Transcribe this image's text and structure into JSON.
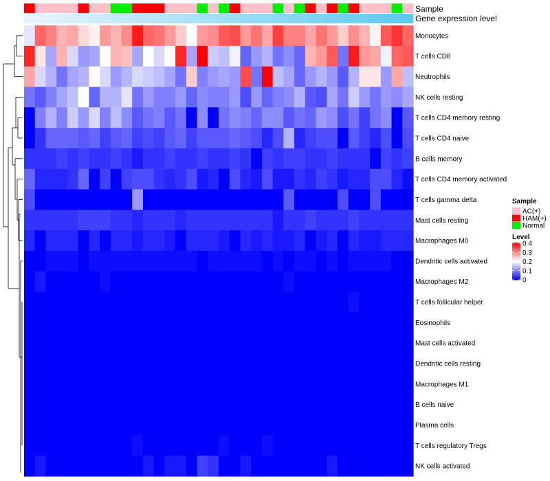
{
  "chart_data": {
    "type": "heatmap",
    "title": "",
    "annotation_rows": [
      "Sample",
      "Gene expression level"
    ],
    "rows": [
      "Monocytes",
      "T cells CD8",
      "Neutrophils",
      "NK cells resting",
      "T cells CD4 memory resting",
      "T cells CD4 naive",
      "B cells memory",
      "T cells CD4 memory activated",
      "T cells gamma delta",
      "Mast cells resting",
      "Macrophages M0",
      "Dendritic cells activated",
      "Macrophages M2",
      "T cells follicular helper",
      "Eosinophils",
      "Mast cells activated",
      "Dendritic cells resting",
      "Macrophages M1",
      "B cells naive",
      "Plasma cells",
      "T cells regulatory  Tregs",
      "NK cells activated"
    ],
    "sample_groups": [
      "HAM(+)",
      "AC(+)",
      "AC(+)",
      "AC(+)",
      "AC(+)",
      "HAM(+)",
      "AC(+)",
      "AC(+)",
      "Normal",
      "Normal",
      "HAM(+)",
      "HAM(+)",
      "HAM(+)",
      "AC(+)",
      "AC(+)",
      "AC(+)",
      "Normal",
      "AC(+)",
      "Normal",
      "HAM(+)",
      "AC(+)",
      "AC(+)",
      "AC(+)",
      "Normal",
      "AC(+)",
      "Normal",
      "HAM(+)",
      "AC(+)",
      "HAM(+)",
      "Normal",
      "HAM(+)",
      "AC(+)",
      "AC(+)",
      "AC(+)",
      "Normal",
      "AC(+)"
    ],
    "values": [
      [
        0.18,
        0.32,
        0.3,
        0.26,
        0.27,
        0.23,
        0.21,
        0.28,
        0.26,
        0.29,
        0.38,
        0.32,
        0.31,
        0.28,
        0.24,
        0.2,
        0.28,
        0.29,
        0.33,
        0.34,
        0.28,
        0.31,
        0.27,
        0.35,
        0.3,
        0.3,
        0.27,
        0.31,
        0.28,
        0.24,
        0.29,
        0.26,
        0.21,
        0.33,
        0.36,
        0.32
      ],
      [
        0.37,
        0.22,
        0.13,
        0.26,
        0.17,
        0.12,
        0.13,
        0.2,
        0.26,
        0.25,
        0.13,
        0.2,
        0.17,
        0.2,
        0.37,
        0.13,
        0.4,
        0.16,
        0.15,
        0.19,
        0.08,
        0.12,
        0.14,
        0.09,
        0.11,
        0.08,
        0.26,
        0.28,
        0.33,
        0.09,
        0.38,
        0.28,
        0.27,
        0.19,
        0.32,
        0.33
      ],
      [
        0.27,
        0.17,
        0.14,
        0.09,
        0.13,
        0.14,
        0.2,
        0.17,
        0.12,
        0.14,
        0.17,
        0.16,
        0.15,
        0.13,
        0.09,
        0.24,
        0.1,
        0.12,
        0.13,
        0.12,
        0.34,
        0.09,
        0.4,
        0.15,
        0.13,
        0.08,
        0.12,
        0.14,
        0.12,
        0.07,
        0.14,
        0.22,
        0.22,
        0.12,
        0.27,
        0.15
      ],
      [
        0.09,
        0.07,
        0.1,
        0.13,
        0.15,
        0.2,
        0.08,
        0.14,
        0.14,
        0.18,
        0.09,
        0.12,
        0.1,
        0.1,
        0.12,
        0.08,
        0.11,
        0.1,
        0.1,
        0.12,
        0.06,
        0.12,
        0.08,
        0.1,
        0.11,
        0.14,
        0.07,
        0.06,
        0.13,
        0.09,
        0.16,
        0.12,
        0.09,
        0.12,
        0.11,
        0.13
      ],
      [
        0.0,
        0.1,
        0.14,
        0.1,
        0.16,
        0.12,
        0.17,
        0.1,
        0.15,
        0.11,
        0.07,
        0.09,
        0.1,
        0.07,
        0.09,
        0.0,
        0.11,
        0.0,
        0.09,
        0.11,
        0.1,
        0.08,
        0.11,
        0.11,
        0.07,
        0.09,
        0.08,
        0.12,
        0.11,
        0.06,
        0.09,
        0.05,
        0.09,
        0.11,
        0.0,
        0.07
      ],
      [
        0.0,
        0.04,
        0.08,
        0.08,
        0.08,
        0.07,
        0.08,
        0.05,
        0.07,
        0.08,
        0.05,
        0.06,
        0.05,
        0.07,
        0.08,
        0.05,
        0.07,
        0.07,
        0.07,
        0.08,
        0.07,
        0.06,
        0.03,
        0.06,
        0.14,
        0.03,
        0.05,
        0.06,
        0.06,
        0.0,
        0.07,
        0.05,
        0.03,
        0.06,
        0.0,
        0.06
      ],
      [
        0.04,
        0.04,
        0.04,
        0.05,
        0.04,
        0.05,
        0.04,
        0.04,
        0.05,
        0.04,
        0.02,
        0.04,
        0.04,
        0.05,
        0.04,
        0.04,
        0.05,
        0.04,
        0.04,
        0.05,
        0.04,
        0.0,
        0.05,
        0.04,
        0.05,
        0.05,
        0.04,
        0.04,
        0.05,
        0.04,
        0.04,
        0.04,
        0.0,
        0.05,
        0.04,
        0.05
      ],
      [
        0.08,
        0.03,
        0.03,
        0.03,
        0.04,
        0.08,
        0.0,
        0.05,
        0.0,
        0.05,
        0.06,
        0.06,
        0.04,
        0.03,
        0.04,
        0.06,
        0.02,
        0.03,
        0.0,
        0.06,
        0.03,
        0.02,
        0.06,
        0.02,
        0.02,
        0.04,
        0.03,
        0.05,
        0.04,
        0.02,
        0.03,
        0.03,
        0.06,
        0.06,
        0.03,
        0.01
      ],
      [
        0.06,
        0.0,
        0.0,
        0.0,
        0.0,
        0.0,
        0.0,
        0.0,
        0.0,
        0.0,
        0.12,
        0.0,
        0.0,
        0.0,
        0.0,
        0.0,
        0.0,
        0.0,
        0.0,
        0.0,
        0.0,
        0.0,
        0.0,
        0.0,
        0.07,
        0.0,
        0.0,
        0.0,
        0.0,
        0.06,
        0.0,
        0.0,
        0.06,
        0.0,
        0.0,
        0.0
      ],
      [
        0.04,
        0.04,
        0.04,
        0.04,
        0.04,
        0.05,
        0.05,
        0.05,
        0.04,
        0.04,
        0.03,
        0.04,
        0.04,
        0.04,
        0.03,
        0.04,
        0.04,
        0.04,
        0.04,
        0.04,
        0.04,
        0.04,
        0.04,
        0.02,
        0.04,
        0.04,
        0.05,
        0.04,
        0.04,
        0.04,
        0.05,
        0.04,
        0.04,
        0.04,
        0.04,
        0.04
      ],
      [
        0.03,
        0.0,
        0.03,
        0.03,
        0.03,
        0.0,
        0.03,
        0.0,
        0.03,
        0.03,
        0.02,
        0.03,
        0.03,
        0.02,
        0.0,
        0.03,
        0.03,
        0.03,
        0.02,
        0.0,
        0.03,
        0.02,
        0.03,
        0.02,
        0.02,
        0.03,
        0.0,
        0.02,
        0.03,
        0.0,
        0.03,
        0.02,
        0.02,
        0.03,
        0.03,
        0.03
      ],
      [
        0.0,
        0.0,
        0.01,
        0.01,
        0.01,
        0.0,
        0.01,
        0.01,
        0.01,
        0.01,
        0.01,
        0.01,
        0.01,
        0.01,
        0.01,
        0.01,
        0.0,
        0.01,
        0.01,
        0.01,
        0.01,
        0.01,
        0.0,
        0.01,
        0.0,
        0.01,
        0.01,
        0.0,
        0.01,
        0.0,
        0.01,
        0.01,
        0.01,
        0.01,
        0.0,
        0.0
      ],
      [
        0.0,
        0.02,
        0.0,
        0.0,
        0.0,
        0.0,
        0.0,
        0.01,
        0.0,
        0.0,
        0.0,
        0.0,
        0.0,
        0.0,
        0.0,
        0.0,
        0.0,
        0.0,
        0.0,
        0.0,
        0.0,
        0.0,
        0.0,
        0.0,
        0.01,
        0.0,
        0.0,
        0.0,
        0.0,
        0.0,
        0.0,
        0.0,
        0.0,
        0.0,
        0.0,
        0.0
      ],
      [
        0.0,
        0.0,
        0.0,
        0.0,
        0.0,
        0.0,
        0.0,
        0.0,
        0.0,
        0.0,
        0.0,
        0.0,
        0.0,
        0.0,
        0.0,
        0.0,
        0.0,
        0.0,
        0.0,
        0.0,
        0.0,
        0.0,
        0.0,
        0.0,
        0.0,
        0.0,
        0.0,
        0.0,
        0.0,
        0.0,
        0.01,
        0.0,
        0.0,
        0.0,
        0.0,
        0.0
      ],
      [
        0.0,
        0.0,
        0.0,
        0.0,
        0.0,
        0.0,
        0.0,
        0.0,
        0.0,
        0.0,
        0.0,
        0.0,
        0.0,
        0.0,
        0.0,
        0.0,
        0.0,
        0.0,
        0.0,
        0.0,
        0.0,
        0.0,
        0.0,
        0.0,
        0.0,
        0.0,
        0.0,
        0.0,
        0.0,
        0.0,
        0.0,
        0.0,
        0.0,
        0.0,
        0.0,
        0.0
      ],
      [
        0.0,
        0.0,
        0.0,
        0.0,
        0.0,
        0.0,
        0.0,
        0.0,
        0.0,
        0.0,
        0.0,
        0.0,
        0.0,
        0.0,
        0.0,
        0.0,
        0.0,
        0.0,
        0.0,
        0.0,
        0.0,
        0.0,
        0.0,
        0.0,
        0.0,
        0.0,
        0.0,
        0.0,
        0.0,
        0.0,
        0.0,
        0.0,
        0.0,
        0.0,
        0.0,
        0.0
      ],
      [
        0.0,
        0.0,
        0.0,
        0.0,
        0.0,
        0.0,
        0.0,
        0.0,
        0.0,
        0.0,
        0.0,
        0.0,
        0.0,
        0.0,
        0.0,
        0.0,
        0.0,
        0.0,
        0.0,
        0.0,
        0.0,
        0.0,
        0.0,
        0.0,
        0.0,
        0.0,
        0.0,
        0.0,
        0.0,
        0.0,
        0.0,
        0.0,
        0.0,
        0.0,
        0.0,
        0.0
      ],
      [
        0.0,
        0.0,
        0.0,
        0.0,
        0.0,
        0.0,
        0.0,
        0.0,
        0.0,
        0.0,
        0.0,
        0.0,
        0.0,
        0.0,
        0.0,
        0.0,
        0.0,
        0.0,
        0.0,
        0.0,
        0.0,
        0.0,
        0.0,
        0.0,
        0.0,
        0.0,
        0.0,
        0.0,
        0.0,
        0.0,
        0.0,
        0.0,
        0.0,
        0.0,
        0.0,
        0.0
      ],
      [
        0.0,
        0.0,
        0.0,
        0.0,
        0.0,
        0.0,
        0.0,
        0.0,
        0.0,
        0.0,
        0.0,
        0.0,
        0.0,
        0.0,
        0.0,
        0.0,
        0.0,
        0.0,
        0.0,
        0.0,
        0.0,
        0.0,
        0.0,
        0.0,
        0.0,
        0.0,
        0.0,
        0.0,
        0.0,
        0.0,
        0.0,
        0.0,
        0.0,
        0.0,
        0.0,
        0.0
      ],
      [
        0.0,
        0.0,
        0.0,
        0.0,
        0.0,
        0.0,
        0.0,
        0.0,
        0.0,
        0.0,
        0.0,
        0.0,
        0.0,
        0.0,
        0.0,
        0.0,
        0.0,
        0.0,
        0.0,
        0.0,
        0.0,
        0.0,
        0.0,
        0.0,
        0.0,
        0.0,
        0.0,
        0.0,
        0.0,
        0.0,
        0.0,
        0.0,
        0.0,
        0.0,
        0.0,
        0.0
      ],
      [
        0.0,
        0.0,
        0.0,
        0.0,
        0.0,
        0.0,
        0.0,
        0.0,
        0.0,
        0.0,
        0.01,
        0.0,
        0.0,
        0.0,
        0.0,
        0.0,
        0.0,
        0.0,
        0.01,
        0.0,
        0.0,
        0.0,
        0.01,
        0.0,
        0.0,
        0.0,
        0.0,
        0.0,
        0.0,
        0.0,
        0.0,
        0.0,
        0.0,
        0.0,
        0.0,
        0.0
      ],
      [
        0.0,
        0.02,
        0.0,
        0.0,
        0.0,
        0.0,
        0.0,
        0.0,
        0.0,
        0.0,
        0.0,
        0.02,
        0.0,
        0.02,
        0.02,
        0.0,
        0.05,
        0.04,
        0.0,
        0.0,
        0.02,
        0.0,
        0.0,
        0.0,
        0.0,
        0.0,
        0.0,
        0.0,
        0.02,
        0.0,
        0.0,
        0.0,
        0.0,
        0.0,
        0.0,
        0.0
      ]
    ],
    "legend": {
      "sample_title": "Sample",
      "sample_entries": [
        {
          "label": "AC(+)",
          "color": "#ffc0cb"
        },
        {
          "label": "HAM(+)",
          "color": "#ff0000"
        },
        {
          "label": "Normal",
          "color": "#00ee00"
        }
      ],
      "level_title": "Level",
      "level_ticks": [
        "0.4",
        "0.3",
        "0.2",
        "0.1",
        "0"
      ],
      "level_range": [
        0,
        0.4
      ]
    },
    "colors": {
      "low": "#0000ff",
      "mid": "#ffffff",
      "high": "#ff0000",
      "gene_expression_bar": "#5bc8f0",
      "dendrogram": "#000000"
    }
  }
}
